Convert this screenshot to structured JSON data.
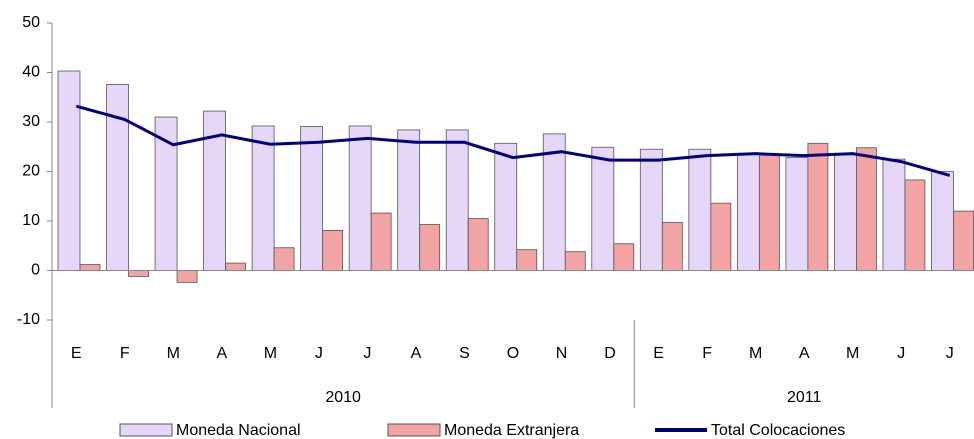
{
  "chart_data": {
    "type": "bar-line",
    "categories": [
      "E",
      "F",
      "M",
      "A",
      "M",
      "J",
      "J",
      "A",
      "S",
      "O",
      "N",
      "D",
      "E",
      "F",
      "M",
      "A",
      "M",
      "J",
      "J"
    ],
    "groups": [
      {
        "label": "2010",
        "count": 12
      },
      {
        "label": "2011",
        "count": 7
      }
    ],
    "series": [
      {
        "name": "Moneda Nacional",
        "kind": "bar",
        "color": "#e6d6f7",
        "values": [
          40.3,
          37.6,
          31,
          32.2,
          29.2,
          29.1,
          29.2,
          28.4,
          28.4,
          25.7,
          27.6,
          24.9,
          24.5,
          24.5,
          23.5,
          22.8,
          23.5,
          22.5,
          20
        ]
      },
      {
        "name": "Moneda Extranjera",
        "kind": "bar",
        "color": "#f2a3a3",
        "values": [
          1.2,
          -1.2,
          -2.4,
          1.5,
          4.6,
          8.1,
          11.6,
          9.3,
          10.5,
          4.2,
          3.8,
          5.4,
          9.7,
          13.6,
          23.5,
          25.7,
          24.8,
          18.3,
          12
        ]
      },
      {
        "name": "Total Colocaciones",
        "kind": "line",
        "color": "#000080",
        "values": [
          33.2,
          30.5,
          25.4,
          27.4,
          25.5,
          25.9,
          26.7,
          25.9,
          25.9,
          22.8,
          24,
          22.3,
          22.3,
          23.2,
          23.6,
          23.2,
          23.6,
          22,
          19.2
        ]
      }
    ],
    "ylim": [
      -10,
      50
    ],
    "yticks": [
      -10,
      0,
      10,
      20,
      30,
      40,
      50
    ],
    "grid": false
  }
}
